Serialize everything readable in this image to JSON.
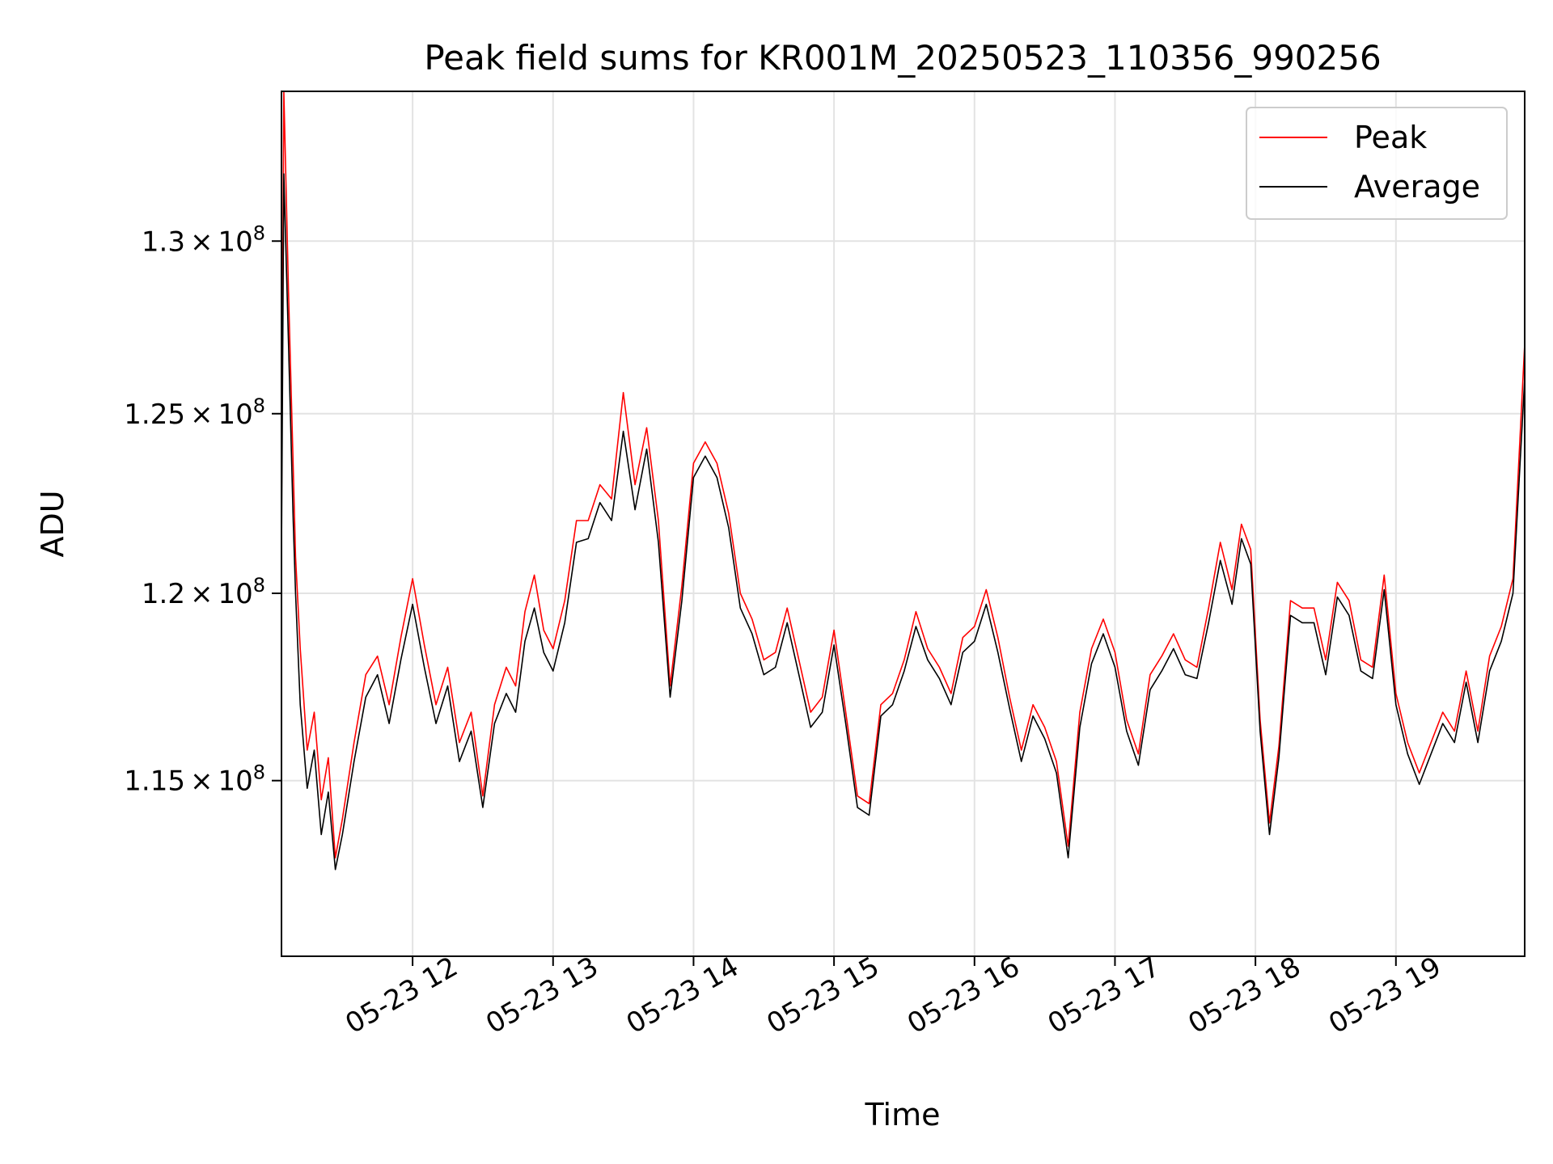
{
  "chart_data": {
    "type": "line",
    "title": "Peak field sums for KR001M_20250523_110356_990256",
    "xlabel": "Time",
    "ylabel": "ADU",
    "y_scale": "log",
    "grid": true,
    "legend_position": "top-right",
    "xlim": [
      "2025-05-23 11:04",
      "2025-05-23 19:55"
    ],
    "ylim": [
      110500000,
      134500000
    ],
    "x_ticks": [
      {
        "value": "2025-05-23 12:00",
        "label": "05-23 12"
      },
      {
        "value": "2025-05-23 13:00",
        "label": "05-23 13"
      },
      {
        "value": "2025-05-23 14:00",
        "label": "05-23 14"
      },
      {
        "value": "2025-05-23 15:00",
        "label": "05-23 15"
      },
      {
        "value": "2025-05-23 16:00",
        "label": "05-23 16"
      },
      {
        "value": "2025-05-23 17:00",
        "label": "05-23 17"
      },
      {
        "value": "2025-05-23 18:00",
        "label": "05-23 18"
      },
      {
        "value": "2025-05-23 19:00",
        "label": "05-23 19"
      }
    ],
    "y_ticks": [
      {
        "value": 115000000,
        "mantissa": "1.15",
        "base": "10",
        "exp": "8"
      },
      {
        "value": 120000000,
        "mantissa": "1.2",
        "base": "10",
        "exp": "8"
      },
      {
        "value": 125000000,
        "mantissa": "1.25",
        "base": "10",
        "exp": "8"
      },
      {
        "value": 130000000,
        "mantissa": "1.3",
        "base": "10",
        "exp": "8"
      }
    ],
    "x": [
      "2025-05-23 11:04",
      "2025-05-23 11:05",
      "2025-05-23 11:07",
      "2025-05-23 11:09",
      "2025-05-23 11:10",
      "2025-05-23 11:12",
      "2025-05-23 11:15",
      "2025-05-23 11:18",
      "2025-05-23 11:21",
      "2025-05-23 11:24",
      "2025-05-23 11:27",
      "2025-05-23 11:30",
      "2025-05-23 11:35",
      "2025-05-23 11:40",
      "2025-05-23 11:45",
      "2025-05-23 11:50",
      "2025-05-23 11:55",
      "2025-05-23 12:00",
      "2025-05-23 12:05",
      "2025-05-23 12:10",
      "2025-05-23 12:15",
      "2025-05-23 12:20",
      "2025-05-23 12:25",
      "2025-05-23 12:30",
      "2025-05-23 12:35",
      "2025-05-23 12:40",
      "2025-05-23 12:44",
      "2025-05-23 12:48",
      "2025-05-23 12:52",
      "2025-05-23 12:56",
      "2025-05-23 13:00",
      "2025-05-23 13:05",
      "2025-05-23 13:10",
      "2025-05-23 13:15",
      "2025-05-23 13:20",
      "2025-05-23 13:25",
      "2025-05-23 13:30",
      "2025-05-23 13:35",
      "2025-05-23 13:40",
      "2025-05-23 13:45",
      "2025-05-23 13:50",
      "2025-05-23 13:55",
      "2025-05-23 14:00",
      "2025-05-23 14:05",
      "2025-05-23 14:10",
      "2025-05-23 14:15",
      "2025-05-23 14:20",
      "2025-05-23 14:25",
      "2025-05-23 14:30",
      "2025-05-23 14:35",
      "2025-05-23 14:40",
      "2025-05-23 14:45",
      "2025-05-23 14:50",
      "2025-05-23 14:55",
      "2025-05-23 15:00",
      "2025-05-23 15:05",
      "2025-05-23 15:10",
      "2025-05-23 15:15",
      "2025-05-23 15:20",
      "2025-05-23 15:25",
      "2025-05-23 15:30",
      "2025-05-23 15:35",
      "2025-05-23 15:40",
      "2025-05-23 15:45",
      "2025-05-23 15:50",
      "2025-05-23 15:55",
      "2025-05-23 16:00",
      "2025-05-23 16:05",
      "2025-05-23 16:10",
      "2025-05-23 16:15",
      "2025-05-23 16:20",
      "2025-05-23 16:25",
      "2025-05-23 16:30",
      "2025-05-23 16:35",
      "2025-05-23 16:40",
      "2025-05-23 16:45",
      "2025-05-23 16:50",
      "2025-05-23 16:55",
      "2025-05-23 17:00",
      "2025-05-23 17:05",
      "2025-05-23 17:10",
      "2025-05-23 17:15",
      "2025-05-23 17:20",
      "2025-05-23 17:25",
      "2025-05-23 17:30",
      "2025-05-23 17:35",
      "2025-05-23 17:40",
      "2025-05-23 17:45",
      "2025-05-23 17:50",
      "2025-05-23 17:54",
      "2025-05-23 17:58",
      "2025-05-23 18:02",
      "2025-05-23 18:06",
      "2025-05-23 18:10",
      "2025-05-23 18:15",
      "2025-05-23 18:20",
      "2025-05-23 18:25",
      "2025-05-23 18:30",
      "2025-05-23 18:35",
      "2025-05-23 18:40",
      "2025-05-23 18:45",
      "2025-05-23 18:50",
      "2025-05-23 18:55",
      "2025-05-23 19:00",
      "2025-05-23 19:05",
      "2025-05-23 19:10",
      "2025-05-23 19:15",
      "2025-05-23 19:20",
      "2025-05-23 19:25",
      "2025-05-23 19:30",
      "2025-05-23 19:35",
      "2025-05-23 19:40",
      "2025-05-23 19:45",
      "2025-05-23 19:50",
      "2025-05-23 19:55"
    ],
    "series": [
      {
        "name": "Peak",
        "color": "#ff0000",
        "values": [
          122000000,
          134500000,
          128500000,
          123500000,
          121000000,
          118500000,
          115800000,
          116800000,
          114500000,
          115600000,
          113000000,
          114000000,
          116000000,
          117800000,
          118300000,
          117000000,
          118800000,
          120400000,
          118600000,
          117000000,
          118000000,
          116000000,
          116800000,
          114600000,
          117000000,
          118000000,
          117500000,
          119500000,
          120500000,
          119000000,
          118500000,
          119800000,
          122000000,
          122000000,
          123000000,
          122600000,
          125600000,
          123000000,
          124600000,
          122000000,
          117500000,
          120200000,
          123600000,
          124200000,
          123600000,
          122200000,
          120000000,
          119300000,
          118200000,
          118400000,
          119600000,
          118200000,
          116800000,
          117200000,
          119000000,
          116800000,
          114600000,
          114400000,
          117000000,
          117300000,
          118200000,
          119500000,
          118500000,
          118000000,
          117300000,
          118800000,
          119100000,
          120100000,
          118800000,
          117200000,
          115800000,
          117000000,
          116400000,
          115500000,
          113300000,
          116800000,
          118500000,
          119300000,
          118400000,
          116600000,
          115700000,
          117800000,
          118300000,
          118900000,
          118200000,
          118000000,
          119600000,
          121400000,
          120100000,
          121900000,
          121200000,
          116600000,
          113900000,
          115900000,
          119800000,
          119600000,
          119600000,
          118200000,
          120300000,
          119800000,
          118200000,
          118000000,
          120500000,
          117300000,
          116000000,
          115200000,
          116000000,
          116800000,
          116300000,
          117900000,
          116300000,
          118300000,
          119100000,
          120400000,
          127000000
        ],
        "line_width": 1
      },
      {
        "name": "Average",
        "color": "#000000",
        "values": [
          121000000,
          132000000,
          127000000,
          122000000,
          120000000,
          117000000,
          114800000,
          115800000,
          113600000,
          114700000,
          112700000,
          113600000,
          115500000,
          117200000,
          117800000,
          116500000,
          118200000,
          119700000,
          118000000,
          116500000,
          117500000,
          115500000,
          116300000,
          114300000,
          116500000,
          117300000,
          116800000,
          118700000,
          119600000,
          118400000,
          117900000,
          119200000,
          121400000,
          121500000,
          122500000,
          122000000,
          124500000,
          122300000,
          124000000,
          121400000,
          117200000,
          119800000,
          123200000,
          123800000,
          123200000,
          121800000,
          119600000,
          118900000,
          117800000,
          118000000,
          119200000,
          117800000,
          116400000,
          116800000,
          118600000,
          116500000,
          114300000,
          114100000,
          116700000,
          117000000,
          117900000,
          119100000,
          118200000,
          117700000,
          117000000,
          118400000,
          118700000,
          119700000,
          118400000,
          116900000,
          115500000,
          116700000,
          116100000,
          115200000,
          113000000,
          116400000,
          118100000,
          118900000,
          118000000,
          116300000,
          115400000,
          117400000,
          117900000,
          118500000,
          117800000,
          117700000,
          119200000,
          120900000,
          119700000,
          121500000,
          120800000,
          116300000,
          113600000,
          115600000,
          119400000,
          119200000,
          119200000,
          117800000,
          119900000,
          119400000,
          117900000,
          117700000,
          120100000,
          117000000,
          115700000,
          114900000,
          115700000,
          116500000,
          116000000,
          117600000,
          116000000,
          117900000,
          118700000,
          120000000,
          126000000
        ],
        "line_width": 1
      }
    ]
  }
}
